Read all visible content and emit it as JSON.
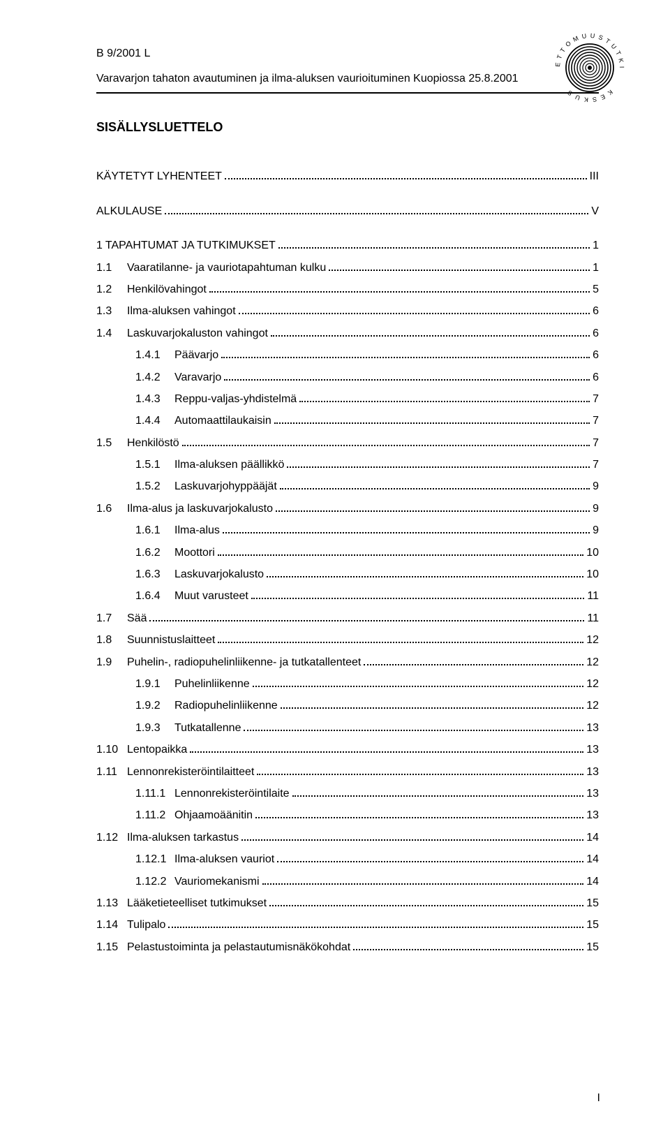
{
  "header": {
    "code": "B 9/2001 L",
    "subtitle": "Varavarjon tahaton avautuminen ja ilma-aluksen vaurioituminen Kuopiossa 25.8.2001"
  },
  "toc_title": "SISÄLLYSLUETTELO",
  "page_number": "I",
  "entries": [
    {
      "level": 0,
      "num": "",
      "label": "KÄYTETYT LYHENTEET",
      "page": "III",
      "gap_after": true
    },
    {
      "level": 0,
      "num": "",
      "label": "ALKULAUSE",
      "page": "V",
      "gap_after": true
    },
    {
      "level": 0,
      "num": "1",
      "label": "TAPAHTUMAT JA TUTKIMUKSET",
      "page": "1"
    },
    {
      "level": 1,
      "num": "1.1",
      "label": "Vaaratilanne- ja vauriotapahtuman kulku",
      "page": "1"
    },
    {
      "level": 1,
      "num": "1.2",
      "label": "Henkilövahingot",
      "page": "5"
    },
    {
      "level": 1,
      "num": "1.3",
      "label": "Ilma-aluksen vahingot",
      "page": "6"
    },
    {
      "level": 1,
      "num": "1.4",
      "label": "Laskuvarjokaluston vahingot",
      "page": "6"
    },
    {
      "level": 2,
      "num": "1.4.1",
      "label": "Päävarjo",
      "page": "6"
    },
    {
      "level": 2,
      "num": "1.4.2",
      "label": "Varavarjo",
      "page": "6"
    },
    {
      "level": 2,
      "num": "1.4.3",
      "label": "Reppu-valjas-yhdistelmä",
      "page": "7"
    },
    {
      "level": 2,
      "num": "1.4.4",
      "label": "Automaattilaukaisin",
      "page": "7"
    },
    {
      "level": 1,
      "num": "1.5",
      "label": "Henkilöstö",
      "page": "7"
    },
    {
      "level": 2,
      "num": "1.5.1",
      "label": "Ilma-aluksen päällikkö",
      "page": "7"
    },
    {
      "level": 2,
      "num": "1.5.2",
      "label": "Laskuvarjohyppääjät",
      "page": "9"
    },
    {
      "level": 1,
      "num": "1.6",
      "label": "Ilma-alus ja laskuvarjokalusto",
      "page": "9"
    },
    {
      "level": 2,
      "num": "1.6.1",
      "label": "Ilma-alus",
      "page": "9"
    },
    {
      "level": 2,
      "num": "1.6.2",
      "label": "Moottori",
      "page": "10"
    },
    {
      "level": 2,
      "num": "1.6.3",
      "label": "Laskuvarjokalusto",
      "page": "10"
    },
    {
      "level": 2,
      "num": "1.6.4",
      "label": "Muut varusteet",
      "page": "11"
    },
    {
      "level": 1,
      "num": "1.7",
      "label": "Sää",
      "page": "11"
    },
    {
      "level": 1,
      "num": "1.8",
      "label": "Suunnistuslaitteet",
      "page": "12"
    },
    {
      "level": 1,
      "num": "1.9",
      "label": "Puhelin-, radiopuhelinliikenne- ja tutkatallenteet",
      "page": "12"
    },
    {
      "level": 2,
      "num": "1.9.1",
      "label": "Puhelinliikenne",
      "page": "12"
    },
    {
      "level": 2,
      "num": "1.9.2",
      "label": "Radiopuhelinliikenne",
      "page": "12"
    },
    {
      "level": 2,
      "num": "1.9.3",
      "label": "Tutkatallenne",
      "page": "13"
    },
    {
      "level": 1,
      "num": "1.10",
      "label": "Lentopaikka",
      "page": "13"
    },
    {
      "level": 1,
      "num": "1.11",
      "label": "Lennonrekisteröintilaitteet",
      "page": "13"
    },
    {
      "level": 2,
      "num": "1.11.1",
      "label": "Lennonrekisteröintilaite",
      "page": "13"
    },
    {
      "level": 2,
      "num": "1.11.2",
      "label": "Ohjaamoäänitin",
      "page": "13"
    },
    {
      "level": 1,
      "num": "1.12",
      "label": "Ilma-aluksen tarkastus",
      "page": "14"
    },
    {
      "level": 2,
      "num": "1.12.1",
      "label": "Ilma-aluksen vauriot",
      "page": "14"
    },
    {
      "level": 2,
      "num": "1.12.2",
      "label": "Vauriomekanismi",
      "page": "14"
    },
    {
      "level": 1,
      "num": "1.13",
      "label": "Lääketieteelliset tutkimukset",
      "page": "15"
    },
    {
      "level": 1,
      "num": "1.14",
      "label": "Tulipalo",
      "page": "15"
    },
    {
      "level": 1,
      "num": "1.15",
      "label": "Pelastustoiminta ja pelastautumisnäkökohdat",
      "page": "15"
    }
  ]
}
